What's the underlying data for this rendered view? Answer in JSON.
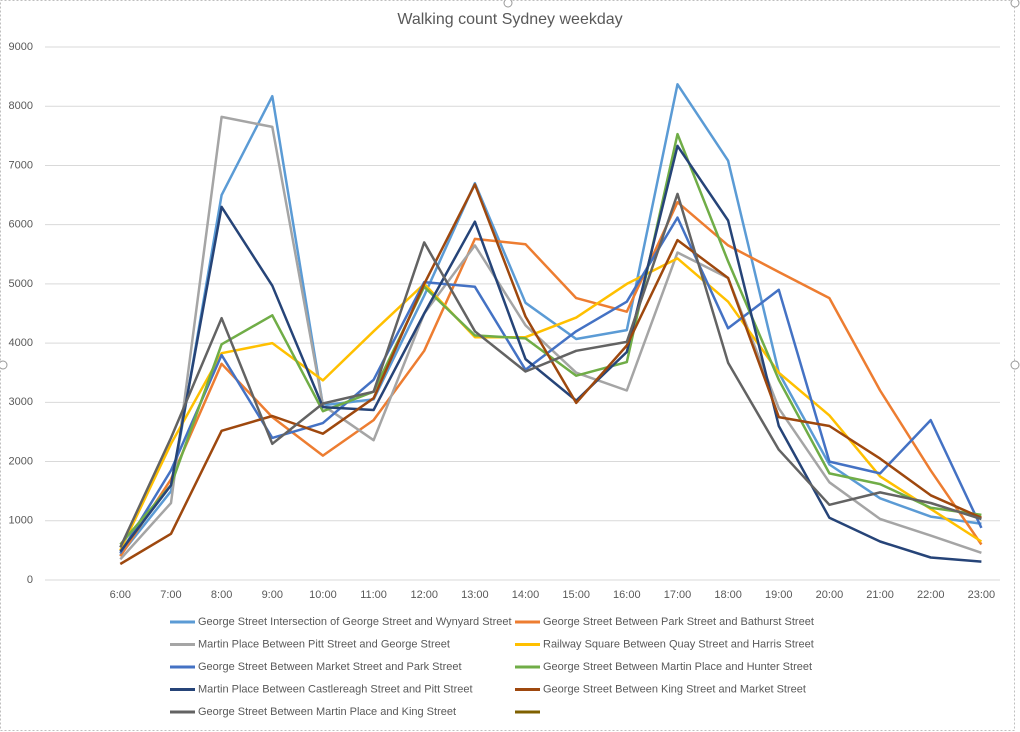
{
  "chart_data": {
    "type": "line",
    "title": "Walking count Sydney weekday",
    "categories": [
      "6:00",
      "7:00",
      "8:00",
      "9:00",
      "10:00",
      "11:00",
      "12:00",
      "13:00",
      "14:00",
      "15:00",
      "16:00",
      "17:00",
      "18:00",
      "19:00",
      "20:00",
      "21:00",
      "22:00",
      "23:00"
    ],
    "ylim": [
      0,
      9000
    ],
    "yticks": [
      0,
      1000,
      2000,
      3000,
      4000,
      5000,
      6000,
      7000,
      8000,
      9000
    ],
    "grid": true,
    "legend": "bottom",
    "series": [
      {
        "name": "George Street Intersection of George Street and Wynyard Street",
        "color": "#5b9bd5",
        "values": [
          420,
          1500,
          6500,
          8170,
          2950,
          3050,
          4800,
          6700,
          4680,
          4070,
          4220,
          8370,
          7080,
          3500,
          1950,
          1380,
          1070,
          950
        ]
      },
      {
        "name": "George Street Between Park Street and Bathurst Street",
        "color": "#ed7d31",
        "values": [
          400,
          1700,
          3650,
          2750,
          2100,
          2700,
          3870,
          5760,
          5670,
          4760,
          4530,
          6380,
          5650,
          5200,
          4760,
          3200,
          1850,
          600
        ]
      },
      {
        "name": "Martin Place Between Pitt Street and George Street",
        "color": "#a5a5a5",
        "values": [
          350,
          1300,
          7820,
          7650,
          2950,
          2360,
          4500,
          5650,
          4300,
          3500,
          3200,
          5530,
          5100,
          2900,
          1650,
          1030,
          750,
          460
        ]
      },
      {
        "name": "Railway Square Between Quay Street and Harris Street",
        "color": "#ffc000",
        "values": [
          500,
          2300,
          3830,
          4000,
          3370,
          4200,
          5000,
          4100,
          4100,
          4430,
          5000,
          5430,
          4700,
          3500,
          2780,
          1750,
          1200,
          650
        ]
      },
      {
        "name": "George Street Between Market Street and Park Street",
        "color": "#4472c4",
        "values": [
          450,
          1850,
          3800,
          2400,
          2650,
          3380,
          5030,
          4950,
          3550,
          4200,
          4700,
          6120,
          4250,
          4900,
          2000,
          1800,
          2700,
          880
        ]
      },
      {
        "name": "George Street Between Martin Place and Hunter Street",
        "color": "#70ad47",
        "values": [
          600,
          1600,
          3980,
          4470,
          2850,
          3180,
          4950,
          4130,
          4080,
          3450,
          3680,
          7530,
          5380,
          3380,
          1800,
          1620,
          1220,
          1100
        ]
      },
      {
        "name": "Martin Place Between Castlereagh Street and Pitt Street",
        "color": "#264478",
        "values": [
          480,
          1600,
          6300,
          4970,
          2920,
          2870,
          4500,
          6050,
          3730,
          3030,
          3850,
          7330,
          6070,
          2600,
          1050,
          650,
          380,
          310
        ]
      },
      {
        "name": "George Street Between King Street and Market Street",
        "color": "#9e480e",
        "values": [
          270,
          780,
          2520,
          2770,
          2470,
          3070,
          5000,
          6680,
          4450,
          2990,
          3960,
          5740,
          5100,
          2750,
          2600,
          2050,
          1430,
          1050
        ]
      },
      {
        "name": "George Street Between Martin Place and King Street",
        "color": "#636363",
        "values": [
          550,
          2400,
          4420,
          2300,
          2980,
          3180,
          5700,
          4200,
          3520,
          3870,
          4020,
          6520,
          3670,
          2200,
          1270,
          1480,
          1300,
          1030
        ]
      }
    ]
  }
}
